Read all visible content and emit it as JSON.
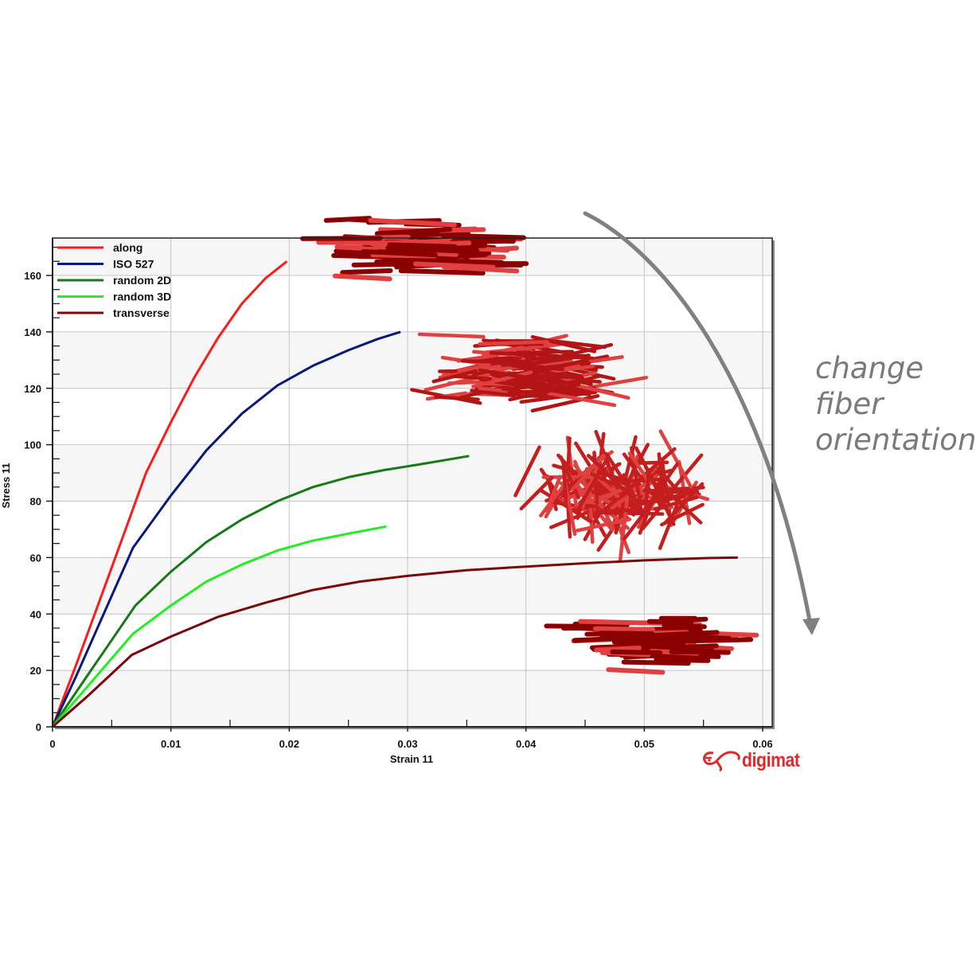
{
  "chart_data": {
    "type": "line",
    "title": "",
    "xlabel": "Strain 11",
    "ylabel": "Stress 11",
    "xlim": [
      0,
      0.061
    ],
    "ylim": [
      0,
      173
    ],
    "x_ticks": [
      "0",
      "0.01",
      "0.02",
      "0.03",
      "0.04",
      "0.05",
      "0.06"
    ],
    "y_ticks": [
      "0",
      "20",
      "40",
      "60",
      "80",
      "100",
      "120",
      "140",
      "160"
    ],
    "grid": true,
    "legend_position": "upper-left",
    "series": [
      {
        "name": "along",
        "color": "#ff1a1a",
        "x": [
          0,
          0.002,
          0.004,
          0.006,
          0.0079,
          0.01,
          0.012,
          0.014,
          0.016,
          0.018,
          0.0198
        ],
        "y": [
          0,
          22,
          45,
          68,
          90,
          108,
          124,
          138,
          150,
          159,
          165
        ]
      },
      {
        "name": "ISO 527",
        "color": "#0a1a7a",
        "x": [
          0,
          0.002,
          0.004,
          0.0068,
          0.01,
          0.013,
          0.016,
          0.019,
          0.022,
          0.025,
          0.0275,
          0.0294
        ],
        "y": [
          0,
          18,
          37,
          63.5,
          82,
          98,
          111,
          121,
          128,
          133.5,
          137.5,
          140
        ]
      },
      {
        "name": "random 2D",
        "color": "#167a16",
        "x": [
          0,
          0.003,
          0.007,
          0.01,
          0.013,
          0.016,
          0.019,
          0.022,
          0.025,
          0.028,
          0.031,
          0.0352
        ],
        "y": [
          0,
          18.5,
          43,
          55,
          65.5,
          73.5,
          80,
          85,
          88.5,
          91,
          93,
          96
        ]
      },
      {
        "name": "random 3D",
        "color": "#22ee22",
        "x": [
          0,
          0.003,
          0.0068,
          0.01,
          0.013,
          0.016,
          0.019,
          0.022,
          0.025,
          0.0282
        ],
        "y": [
          0,
          14.5,
          33,
          43,
          51.5,
          57.5,
          62.5,
          66,
          68.5,
          71
        ]
      },
      {
        "name": "transverse",
        "color": "#7a0a0a",
        "x": [
          0,
          0.003,
          0.0067,
          0.01,
          0.014,
          0.018,
          0.022,
          0.026,
          0.03,
          0.035,
          0.04,
          0.045,
          0.05,
          0.055,
          0.0579
        ],
        "y": [
          0,
          11,
          25.5,
          32,
          39,
          44,
          48.5,
          51.5,
          53.5,
          55.5,
          56.8,
          58,
          59,
          59.8,
          60
        ]
      }
    ],
    "annotations": [
      "change fiber orientation"
    ]
  },
  "chart": {
    "xlabel": "Strain 11",
    "ylabel": "Stress 11",
    "legend": [
      {
        "label": "along",
        "color": "#ff1a1a"
      },
      {
        "label": "ISO 527",
        "color": "#0a1a7a"
      },
      {
        "label": "random 2D",
        "color": "#167a16"
      },
      {
        "label": "random 3D",
        "color": "#22ee22"
      },
      {
        "label": "transverse",
        "color": "#7a0a0a"
      }
    ]
  },
  "annotation": {
    "lines": [
      "change",
      "fiber",
      "orientation"
    ],
    "arrow_color": "#808080"
  },
  "fiber_images": [
    {
      "name": "aligned-fibers-along",
      "color": "#8b0000"
    },
    {
      "name": "iso527-fibers",
      "color": "#b31515"
    },
    {
      "name": "random-3d-fibers",
      "color": "#c41e1e"
    },
    {
      "name": "aligned-fibers-transverse",
      "color": "#8b0000"
    }
  ],
  "logo": {
    "text": "digimat",
    "color": "#e02a2a"
  }
}
